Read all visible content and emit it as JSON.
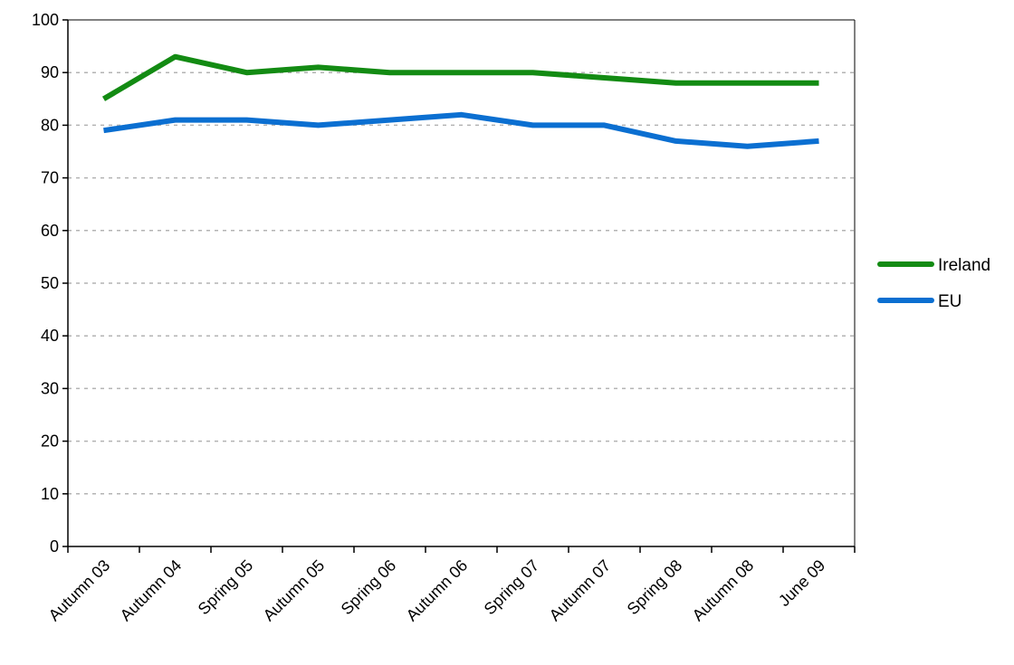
{
  "chart_data": {
    "type": "line",
    "title": "",
    "xlabel": "",
    "ylabel": "",
    "categories": [
      "Autumn 03",
      "Autumn 04",
      "Spring 05",
      "Autumn 05",
      "Spring 06",
      "Autumn 06",
      "Spring 07",
      "Autumn 07",
      "Spring 08",
      "Autumn 08",
      "June 09"
    ],
    "ylim": [
      0,
      100
    ],
    "yticks": [
      0,
      10,
      20,
      30,
      40,
      50,
      60,
      70,
      80,
      90,
      100
    ],
    "grid": true,
    "legend_position": "right",
    "series": [
      {
        "name": "Ireland",
        "color": "#138B13",
        "values": [
          85,
          93,
          90,
          91,
          90,
          90,
          90,
          89,
          88,
          88,
          88
        ]
      },
      {
        "name": "EU",
        "color": "#0B6FD1",
        "values": [
          79,
          81,
          81,
          80,
          81,
          82,
          80,
          80,
          77,
          76,
          77
        ]
      }
    ]
  }
}
